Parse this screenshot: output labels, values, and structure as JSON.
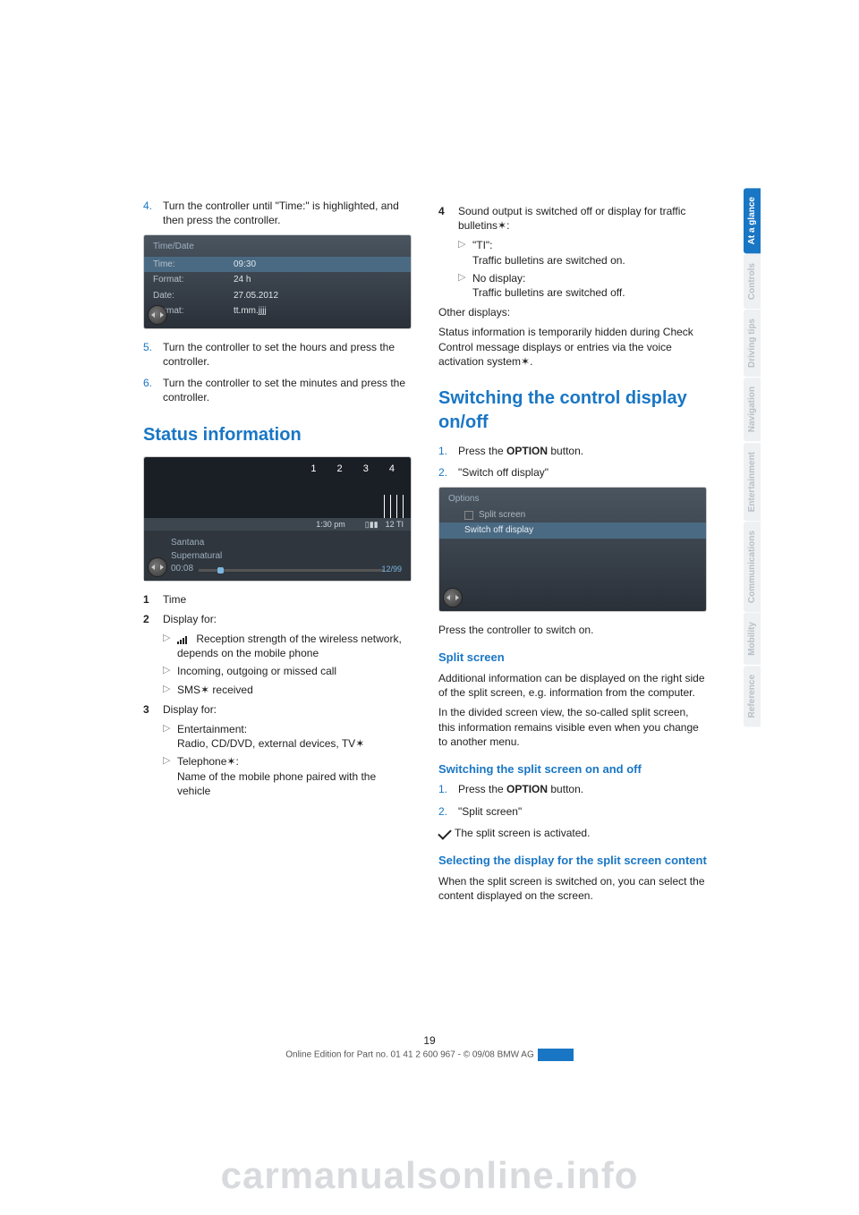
{
  "tabs": [
    "At a glance",
    "Controls",
    "Driving tips",
    "Navigation",
    "Entertainment",
    "Communications",
    "Mobility",
    "Reference"
  ],
  "active_tab_index": 0,
  "left": {
    "ol": [
      {
        "n": "4.",
        "text": "Turn the controller until \"Time:\" is highlighted, and then press the controller."
      },
      {
        "n": "5.",
        "text": "Turn the controller to set the hours and press the controller."
      },
      {
        "n": "6.",
        "text": "Turn the controller to set the minutes and press the controller."
      }
    ],
    "shot1": {
      "title": "Time/Date",
      "rows": [
        {
          "k": "Time:",
          "v": "09:30",
          "hl": true
        },
        {
          "k": "Format:",
          "v": "24 h"
        },
        {
          "k": "Date:",
          "v": "27.05.2012"
        },
        {
          "k": "Format:",
          "v": "tt.mm.jjjj"
        }
      ]
    },
    "h1": "Status information",
    "shot2": {
      "labels": "1  2 3  4",
      "status_left": "1:30 pm",
      "status_right": "12  TI",
      "track_artist": "Santana",
      "track_title": "Supernatural",
      "track_time": "00:08",
      "track_pos": "12/99"
    },
    "defs": [
      {
        "n": "1",
        "body": "Time"
      },
      {
        "n": "2",
        "body": "Display for:",
        "sub": [
          {
            "icon": "signal",
            "text": " Reception strength of the wireless network, depends on the mobile phone"
          },
          {
            "text": "Incoming, outgoing or missed call"
          },
          {
            "text": "SMS✶ received"
          }
        ]
      },
      {
        "n": "3",
        "body": "Display for:",
        "sub": [
          {
            "text": "Entertainment:",
            "text2": "Radio, CD/DVD, external devices, TV✶"
          },
          {
            "text": "Telephone✶:",
            "text2": "Name of the mobile phone paired with the vehicle"
          }
        ]
      }
    ]
  },
  "right": {
    "defs4": {
      "n": "4",
      "body": "Sound output is switched off or display for traffic bulletins✶:",
      "sub": [
        {
          "text": "\"TI\":",
          "text2": "Traffic bulletins are switched on."
        },
        {
          "text": "No display:",
          "text2": "Traffic bulletins are switched off."
        }
      ]
    },
    "other_h": "Other displays:",
    "other_p": "Status information is temporarily hidden during Check Control message displays or entries via the voice activation system✶.",
    "h1": "Switching the control display on/off",
    "ol": [
      {
        "n": "1.",
        "html": "Press the <b>OPTION</b> button."
      },
      {
        "n": "2.",
        "text": "\"Switch off display\""
      }
    ],
    "shot3": {
      "title": "Options",
      "item1": "Split screen",
      "item2": "Switch off display"
    },
    "after_shot": "Press the controller to switch on.",
    "h2a": "Split screen",
    "p2a": "Additional information can be displayed on the right side of the split screen, e.g. information from the computer.",
    "p2b": "In the divided screen view, the so-called split screen, this information remains visible even when you change to another menu.",
    "h2b": "Switching the split screen on and off",
    "ol2": [
      {
        "n": "1.",
        "html": "Press the <b>OPTION</b> button."
      },
      {
        "n": "2.",
        "text": "\"Split screen\""
      }
    ],
    "check_line": "The split screen is activated.",
    "h2c": "Selecting the display for the split screen content",
    "p2c": "When the split screen is switched on, you can select the content displayed on the screen."
  },
  "footer": {
    "page": "19",
    "line": "Online Edition for Part no. 01 41 2 600 967  -  © 09/08 BMW AG"
  },
  "watermark": "carmanualsonline.info"
}
